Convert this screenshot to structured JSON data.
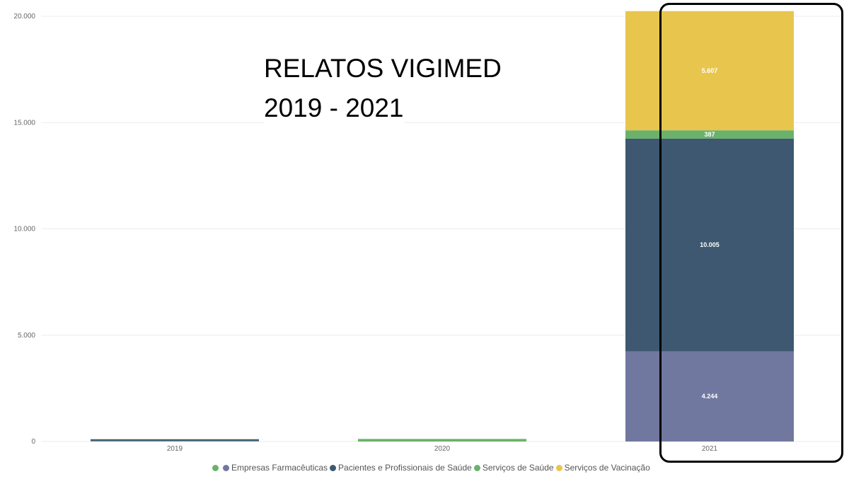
{
  "title": {
    "line1": "RELATOS VIGIMED",
    "line2": "2019 - 2021"
  },
  "legend": {
    "items": [
      {
        "label": "",
        "color": "#6ab26a"
      },
      {
        "label": "Empresas Farmacêuticas",
        "color": "#7178a0"
      },
      {
        "label": "Pacientes e Profissionais de Saúde",
        "color": "#3d5870"
      },
      {
        "label": "Serviços de Saúde",
        "color": "#6ab26a"
      },
      {
        "label": "Serviços de Vacinação",
        "color": "#e8c64e"
      }
    ]
  },
  "chart_data": {
    "type": "bar",
    "stacked": true,
    "categories": [
      "2019",
      "2020",
      "2021"
    ],
    "ylim": [
      0,
      20000
    ],
    "yticks": [
      0,
      5000,
      10000,
      15000,
      20000
    ],
    "ytick_labels": [
      "0",
      "5.000",
      "10.000",
      "15.000",
      "20.000"
    ],
    "grid": true,
    "series": [
      {
        "name": "",
        "color": "#6ab26a",
        "values": [
          15,
          0,
          0
        ],
        "labels": [
          "",
          "",
          ""
        ]
      },
      {
        "name": "Empresas Farmacêuticas",
        "color": "#7178a0",
        "values": [
          25,
          0,
          4244
        ],
        "labels": [
          "",
          "",
          "4.244"
        ]
      },
      {
        "name": "Pacientes e Profissionais de Saúde",
        "color": "#3d5870",
        "values": [
          20,
          0,
          10005
        ],
        "labels": [
          "",
          "",
          "10.005"
        ]
      },
      {
        "name": "Serviços de Saúde",
        "color": "#6ab26a",
        "values": [
          0,
          120,
          387
        ],
        "labels": [
          "",
          "",
          "387"
        ]
      },
      {
        "name": "Serviços de Vacinação",
        "color": "#e8c64e",
        "values": [
          0,
          0,
          5607
        ],
        "labels": [
          "",
          "",
          "5.607"
        ]
      }
    ]
  }
}
